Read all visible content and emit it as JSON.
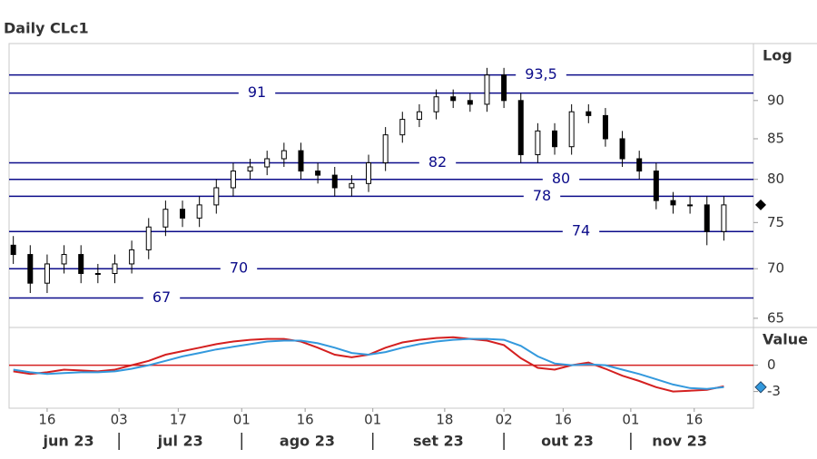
{
  "chart_data": [
    {
      "type": "candlestick",
      "title": "Daily CLc1",
      "scale_label": "Log",
      "log_scale": true,
      "x": [
        "2023-06-08",
        "2023-06-12",
        "2023-06-16",
        "2023-06-20",
        "2023-06-24",
        "2023-06-28",
        "2023-07-02",
        "2023-07-06",
        "2023-07-10",
        "2023-07-14",
        "2023-07-18",
        "2023-07-22",
        "2023-07-26",
        "2023-07-30",
        "2023-08-03",
        "2023-08-07",
        "2023-08-11",
        "2023-08-15",
        "2023-08-19",
        "2023-08-23",
        "2023-08-27",
        "2023-08-31",
        "2023-09-04",
        "2023-09-08",
        "2023-09-12",
        "2023-09-16",
        "2023-09-20",
        "2023-09-24",
        "2023-09-28",
        "2023-10-02",
        "2023-10-06",
        "2023-10-10",
        "2023-10-14",
        "2023-10-18",
        "2023-10-22",
        "2023-10-26",
        "2023-10-30",
        "2023-11-03",
        "2023-11-07",
        "2023-11-11",
        "2023-11-15",
        "2023-11-19",
        "2023-11-23"
      ],
      "open": [
        72.5,
        71.5,
        68.5,
        70.5,
        71.5,
        69.5,
        69.5,
        70.5,
        72,
        74.5,
        76.5,
        75.5,
        77,
        79,
        81,
        81.5,
        82.5,
        83.5,
        81,
        80.5,
        79,
        79.5,
        82,
        85.5,
        87.5,
        88.5,
        90.5,
        90,
        89.5,
        93.5,
        90,
        83,
        86,
        84,
        88.5,
        88,
        85,
        82.5,
        81,
        77.5,
        77,
        77,
        74
      ],
      "high": [
        73.5,
        72.5,
        71.5,
        72.5,
        72.5,
        70.5,
        71.5,
        73,
        75.5,
        77.5,
        77.5,
        78,
        80,
        82,
        82.5,
        83.5,
        84.5,
        84.5,
        82,
        81.5,
        80.5,
        83,
        86.5,
        88.5,
        89.5,
        91.5,
        91.5,
        91,
        94.5,
        94.5,
        91,
        87,
        87,
        89.5,
        89.5,
        89,
        86,
        83.5,
        82,
        78.5,
        78,
        78,
        78
      ],
      "low": [
        70.5,
        67.5,
        67.5,
        69.5,
        68.5,
        68.5,
        68.5,
        69.5,
        71,
        73.5,
        74.5,
        74.5,
        76,
        78,
        80,
        80.5,
        81.5,
        80,
        79.5,
        78,
        78,
        78.5,
        81,
        84.5,
        86.5,
        87.5,
        89,
        88.5,
        88.5,
        89,
        82,
        82,
        83,
        83,
        87,
        84,
        81.5,
        80,
        76.5,
        76,
        76,
        72.5,
        73
      ],
      "close": [
        71.5,
        68.5,
        70.5,
        71.5,
        69.5,
        69.5,
        70.5,
        72,
        74.5,
        76.5,
        75.5,
        77,
        79,
        81,
        81.5,
        82.5,
        83.5,
        81,
        80.5,
        79,
        79.5,
        82,
        85.5,
        87.5,
        88.5,
        90.5,
        90,
        89.5,
        93.5,
        90,
        83,
        86,
        84,
        88.5,
        88,
        85,
        82.5,
        81,
        77.5,
        77,
        77,
        74,
        77
      ],
      "xlim": [
        "2023-06-07",
        "2023-11-30"
      ],
      "xticks": [
        {
          "value": "2023-06-16",
          "label": "16"
        },
        {
          "value": "2023-07-03",
          "label": "03"
        },
        {
          "value": "2023-07-17",
          "label": "17"
        },
        {
          "value": "2023-08-01",
          "label": "01"
        },
        {
          "value": "2023-08-16",
          "label": "16"
        },
        {
          "value": "2023-09-01",
          "label": "01"
        },
        {
          "value": "2023-09-18",
          "label": "18"
        },
        {
          "value": "2023-10-02",
          "label": "02"
        },
        {
          "value": "2023-10-16",
          "label": "16"
        },
        {
          "value": "2023-11-01",
          "label": "01"
        },
        {
          "value": "2023-11-16",
          "label": "16"
        }
      ],
      "month_labels": [
        "jun 23",
        "jul 23",
        "ago 23",
        "set 23",
        "out 23",
        "nov 23"
      ],
      "ylim": [
        64.2,
        98
      ],
      "yticks": [
        65,
        70,
        75,
        80,
        85,
        90
      ],
      "levels": [
        {
          "value": 93.5,
          "label": "93,5"
        },
        91,
        82,
        80,
        78,
        74,
        70,
        67
      ],
      "level_color": "#0c0c8a"
    },
    {
      "type": "line",
      "scale_label": "Value",
      "series": [
        {
          "color": "#d42020",
          "values": [
            -0.7,
            -1,
            -0.8,
            -0.5,
            -0.6,
            -0.7,
            -0.5,
            0,
            0.5,
            1.2,
            1.6,
            2,
            2.4,
            2.7,
            2.9,
            3,
            3,
            2.7,
            2,
            1.2,
            0.9,
            1.2,
            2,
            2.6,
            2.9,
            3.1,
            3.2,
            3,
            2.8,
            2.3,
            0.8,
            -0.3,
            -0.5,
            0,
            0.3,
            -0.4,
            -1.2,
            -1.8,
            -2.5,
            -3,
            -2.9,
            -2.8,
            -2.4
          ]
        },
        {
          "color": "#3399dd",
          "values": [
            -0.5,
            -0.8,
            -1,
            -0.9,
            -0.8,
            -0.8,
            -0.7,
            -0.4,
            0,
            0.5,
            1,
            1.4,
            1.8,
            2.1,
            2.4,
            2.7,
            2.8,
            2.8,
            2.5,
            2,
            1.4,
            1.2,
            1.5,
            2,
            2.4,
            2.7,
            2.9,
            3,
            3,
            2.9,
            2.2,
            1,
            0.2,
            0,
            0.1,
            0,
            -0.5,
            -1,
            -1.6,
            -2.2,
            -2.6,
            -2.7,
            -2.5
          ]
        }
      ],
      "ylim": [
        -4.9,
        4.2
      ],
      "yticks": [
        0,
        -3
      ],
      "zero_color": "#d42020"
    }
  ]
}
